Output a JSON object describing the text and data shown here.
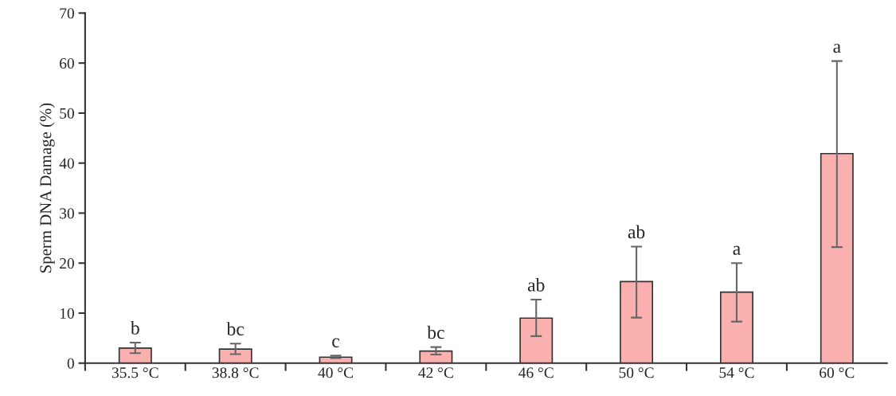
{
  "chart_data": {
    "type": "bar",
    "ylabel": "Sperm DNA Damage (%)",
    "categories": [
      "35.5 °C",
      "38.8 °C",
      "40 °C",
      "42 °C",
      "46 °C",
      "50 °C",
      "54 °C",
      "60 °C"
    ],
    "values": [
      3.0,
      2.8,
      1.2,
      2.4,
      9.0,
      16.3,
      14.2,
      41.9
    ],
    "errors": [
      [
        2.0,
        4.1
      ],
      [
        1.8,
        3.9
      ],
      [
        1.0,
        1.5
      ],
      [
        1.7,
        3.2
      ],
      [
        5.4,
        12.7
      ],
      [
        9.1,
        23.3
      ],
      [
        8.3,
        20.0
      ],
      [
        23.2,
        60.4
      ]
    ],
    "color": "#fbb0b0",
    "ylim": [
      0,
      70
    ],
    "yticks": [
      0,
      10,
      20,
      30,
      40,
      50,
      60,
      70
    ],
    "grid": false,
    "legend": false,
    "annotations": [
      {
        "text": "b",
        "x": "35.5 °C",
        "y": 4.1
      },
      {
        "text": "bc",
        "x": "38.8 °C",
        "y": 3.9
      },
      {
        "text": "c",
        "x": "40 °C",
        "y": 1.5
      },
      {
        "text": "bc",
        "x": "42 °C",
        "y": 3.2
      },
      {
        "text": "ab",
        "x": "46 °C",
        "y": 12.7
      },
      {
        "text": "ab",
        "x": "50 °C",
        "y": 23.3
      },
      {
        "text": "a",
        "x": "54 °C",
        "y": 20.0
      },
      {
        "text": "a",
        "x": "60 °C",
        "y": 60.4
      }
    ]
  }
}
